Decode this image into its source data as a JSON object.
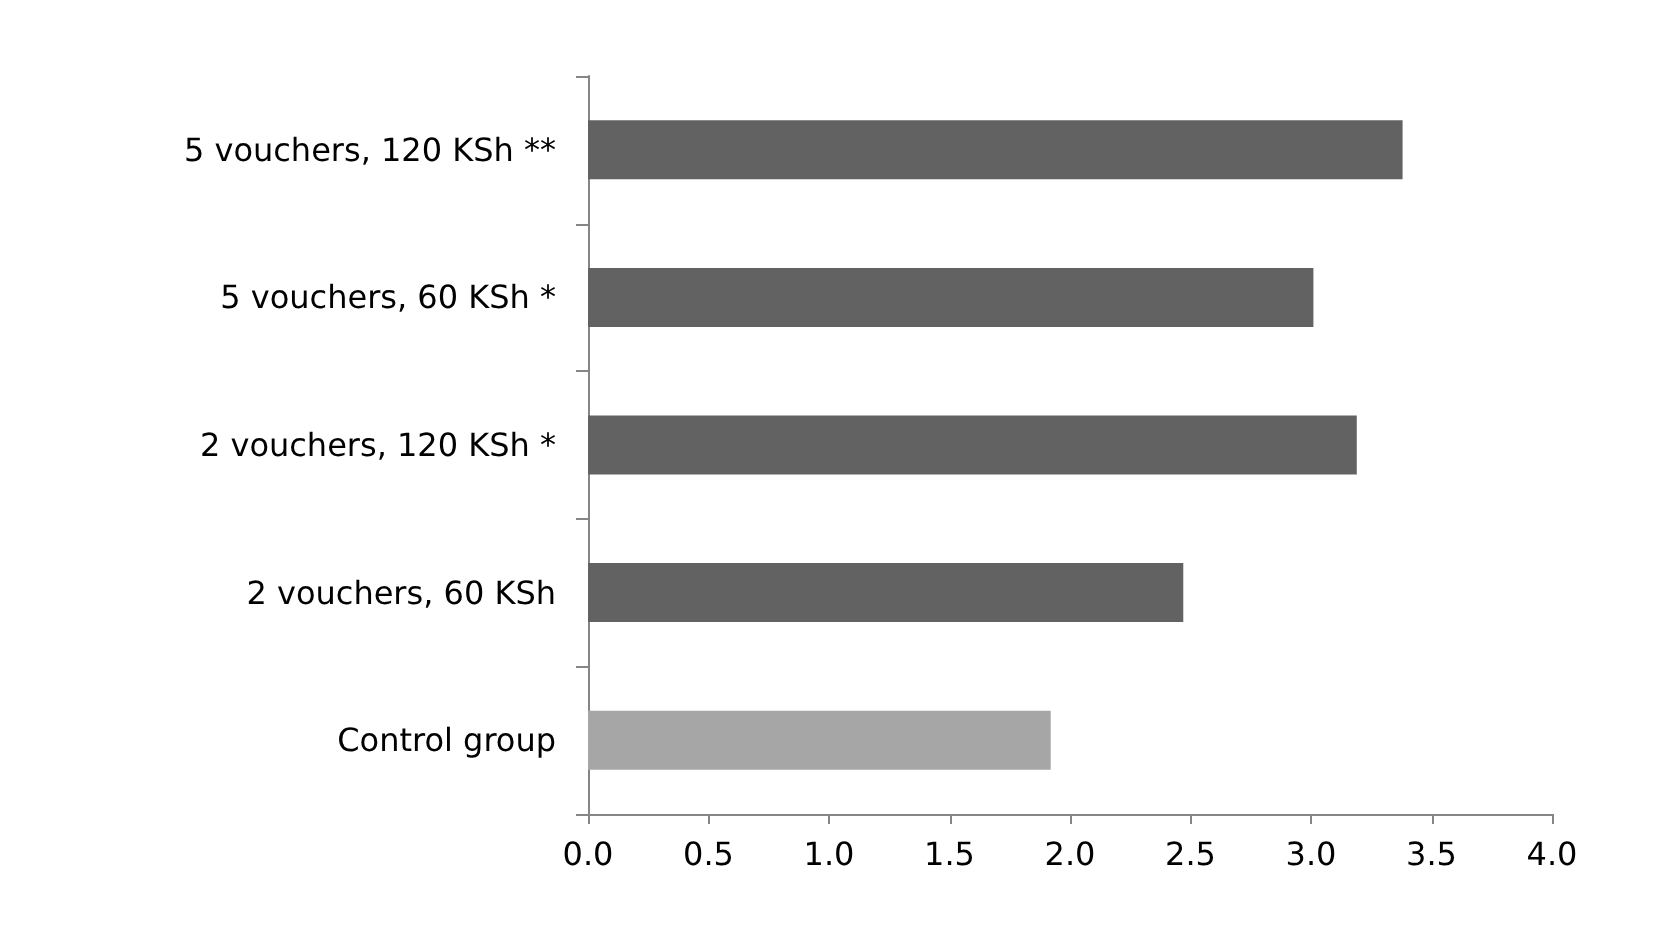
{
  "chart_data": {
    "type": "bar",
    "orientation": "horizontal",
    "categories": [
      "5 vouchers, 120 KSh **",
      "5 vouchers, 60 KSh *",
      "2 vouchers, 120 KSh *",
      "2 vouchers, 60 KSh",
      "Control group"
    ],
    "values": [
      3.38,
      3.01,
      3.19,
      2.47,
      1.92
    ],
    "colors": [
      "#626262",
      "#626262",
      "#626262",
      "#626262",
      "#a6a6a6"
    ],
    "xlim": [
      0,
      4
    ],
    "xticks": [
      {
        "value": 0,
        "label": "0.0"
      },
      0.5,
      {
        "value": 1,
        "label": "1.0"
      },
      1.5,
      {
        "value": 2,
        "label": "2.0"
      },
      2.5,
      {
        "value": 3,
        "label": "3.0"
      },
      3.5,
      {
        "value": 4,
        "label": "4.0"
      }
    ],
    "grid": false
  }
}
